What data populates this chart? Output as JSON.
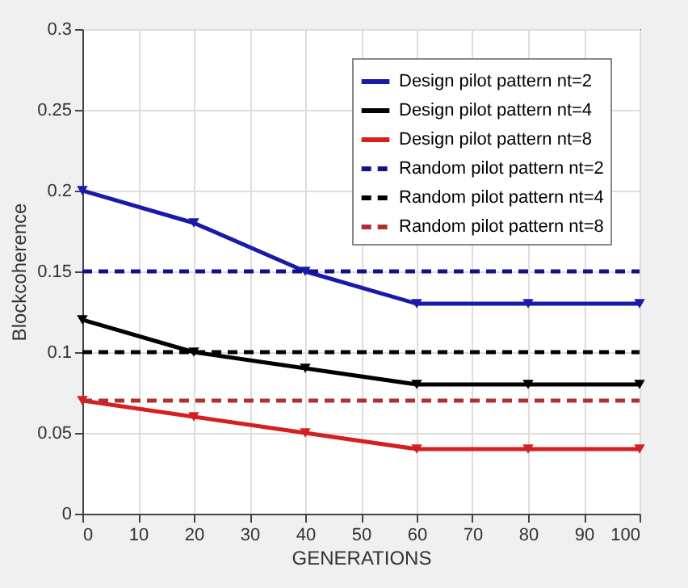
{
  "chart_data": {
    "type": "line",
    "xlabel": "GENERATIONS",
    "ylabel": "Blockcoherence",
    "x": [
      0,
      20,
      40,
      60,
      80,
      100
    ],
    "xlim": [
      0,
      100
    ],
    "xticks": [
      0,
      10,
      20,
      30,
      40,
      50,
      60,
      70,
      80,
      90,
      100
    ],
    "ylim": [
      0,
      0.3
    ],
    "yticks": [
      0,
      0.05,
      0.1,
      0.15,
      0.2,
      0.25,
      0.3
    ],
    "grid": true,
    "legend": "top right",
    "series": [
      {
        "name": "Design pilot pattern nt=2",
        "color": "#1a1aa8",
        "values": [
          0.2,
          0.18,
          0.15,
          0.13,
          0.13,
          0.13
        ],
        "marker": "triangle",
        "line_style": "solid"
      },
      {
        "name": "Design pilot pattern nt=4",
        "color": "#000000",
        "values": [
          0.12,
          0.1,
          0.09,
          0.08,
          0.08,
          0.08
        ],
        "marker": "triangle",
        "line_style": "solid"
      },
      {
        "name": "Design pilot pattern nt=8",
        "color": "#d42020",
        "values": [
          0.07,
          0.06,
          0.05,
          0.04,
          0.04,
          0.04
        ],
        "marker": "triangle",
        "line_style": "solid"
      },
      {
        "name": "Random pilot pattern nt=2",
        "color": "#12128c",
        "values": [
          0.15,
          0.15,
          0.15,
          0.15,
          0.15,
          0.15
        ],
        "marker": "none",
        "line_style": "dashed"
      },
      {
        "name": "Random pilot pattern nt=4",
        "color": "#000000",
        "values": [
          0.1,
          0.1,
          0.1,
          0.1,
          0.1,
          0.1
        ],
        "marker": "none",
        "line_style": "dashed"
      },
      {
        "name": "Random pilot pattern nt=8",
        "color": "#b03030",
        "values": [
          0.07,
          0.07,
          0.07,
          0.07,
          0.07,
          0.07
        ],
        "marker": "none",
        "line_style": "dashed"
      }
    ]
  }
}
